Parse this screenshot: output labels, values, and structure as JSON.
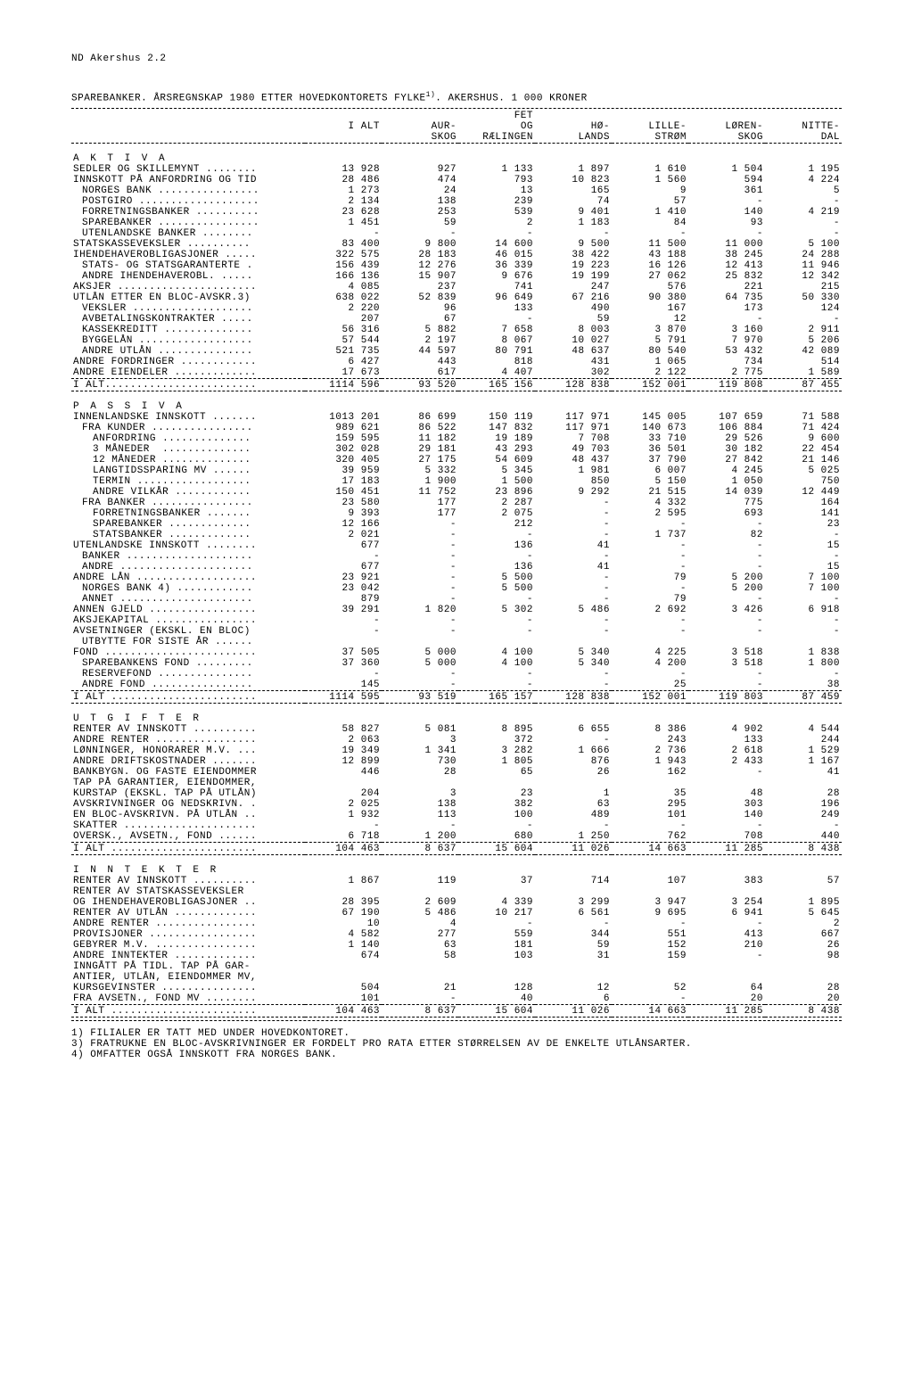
{
  "header": {
    "page_id": "ND  Akershus  2.2",
    "title": "SPAREBANKER.  ÅRSREGNSKAP 1980 ETTER HOVEDKONTORETS FYLKE",
    "title_sup": "1)",
    "title_tail": ".   AKERSHUS.   1 000 KRONER"
  },
  "columns": {
    "c1a": "",
    "c1b": "I ALT",
    "c2a": "AUR-",
    "c2b": "SKOG",
    "c3a": "FET",
    "c3b": "OG",
    "c3c": "RÆLINGEN",
    "c4a": "HØ-",
    "c4b": "LANDS",
    "c5a": "LILLE-",
    "c5b": "STRØM",
    "c6a": "LØREN-",
    "c6b": "SKOG",
    "c7a": "NITTE-",
    "c7b": "DAL"
  },
  "sections": [
    {
      "head": "A K T I V A",
      "rows": [
        {
          "label": "SEDLER OG SKILLEMYNT ........",
          "v": [
            "13 928",
            "927",
            "1 133",
            "1 897",
            "1 610",
            "1 504",
            "1 195"
          ]
        },
        {
          "label": "INNSKOTT PÅ ANFORDRING OG TID",
          "v": [
            "28 486",
            "474",
            "793",
            "10 823",
            "1 560",
            "594",
            "4 224"
          ]
        },
        {
          "label": "NORGES BANK ................",
          "indent": 1,
          "v": [
            "1 273",
            "24",
            "13",
            "165",
            "9",
            "361",
            "5"
          ]
        },
        {
          "label": "POSTGIRO ...................",
          "indent": 1,
          "v": [
            "2 134",
            "138",
            "239",
            "74",
            "57",
            "-",
            "-"
          ]
        },
        {
          "label": "FORRETNINGSBANKER ..........",
          "indent": 1,
          "v": [
            "23 628",
            "253",
            "539",
            "9 401",
            "1 410",
            "140",
            "4 219"
          ]
        },
        {
          "label": "SPAREBANKER ................",
          "indent": 1,
          "v": [
            "1 451",
            "59",
            "2",
            "1 183",
            "84",
            "93",
            "-"
          ]
        },
        {
          "label": "UTENLANDSKE BANKER ........",
          "indent": 1,
          "v": [
            "-",
            "-",
            "-",
            "-",
            "-",
            "-",
            "-"
          ]
        },
        {
          "label": "STATSKASSEVEKSLER ..........",
          "v": [
            "83 400",
            "9 800",
            "14 600",
            "9 500",
            "11 500",
            "11 000",
            "5 100"
          ]
        },
        {
          "label": "IHENDEHAVEROBLIGASJONER .....",
          "v": [
            "322 575",
            "28 183",
            "46 015",
            "38 422",
            "43 188",
            "38 245",
            "24 288"
          ]
        },
        {
          "label": "STATS- OG STATSGARANTERTE .",
          "indent": 1,
          "v": [
            "156 439",
            "12 276",
            "36 339",
            "19 223",
            "16 126",
            "12 413",
            "11 946"
          ]
        },
        {
          "label": "ANDRE IHENDEHAVEROBL. .....",
          "indent": 1,
          "v": [
            "166 136",
            "15 907",
            "9 676",
            "19 199",
            "27 062",
            "25 832",
            "12 342"
          ]
        },
        {
          "label": "AKSJER ......................",
          "v": [
            "4 085",
            "237",
            "741",
            "247",
            "576",
            "221",
            "215"
          ]
        },
        {
          "label": "UTLÅN ETTER EN BLOC-AVSKR.3)",
          "v": [
            "638 022",
            "52 839",
            "96 649",
            "67 216",
            "90 380",
            "64 735",
            "50 330"
          ]
        },
        {
          "label": "VEKSLER ...................",
          "indent": 1,
          "v": [
            "2 220",
            "96",
            "133",
            "490",
            "167",
            "173",
            "124"
          ]
        },
        {
          "label": "AVBETALINGSKONTRAKTER .....",
          "indent": 1,
          "v": [
            "207",
            "67",
            "-",
            "59",
            "12",
            "-",
            "-"
          ]
        },
        {
          "label": "KASSEKREDITT ..............",
          "indent": 1,
          "v": [
            "56 316",
            "5 882",
            "7 658",
            "8 003",
            "3 870",
            "3 160",
            "2 911"
          ]
        },
        {
          "label": "BYGGELÅN ..................",
          "indent": 1,
          "v": [
            "57 544",
            "2 197",
            "8 067",
            "10 027",
            "5 791",
            "7 970",
            "5 206"
          ]
        },
        {
          "label": "ANDRE UTLÅN ...............",
          "indent": 1,
          "v": [
            "521 735",
            "44 597",
            "80 791",
            "48 637",
            "80 540",
            "53 432",
            "42 089"
          ]
        },
        {
          "label": "ANDRE FORDRINGER ............",
          "v": [
            "6 427",
            "443",
            "818",
            "431",
            "1 065",
            "734",
            "514"
          ]
        },
        {
          "label": "ANDRE EIENDELER .............",
          "v": [
            "17 673",
            "617",
            "4 407",
            "302",
            "2 122",
            "2 775",
            "1 589"
          ]
        }
      ],
      "total": {
        "label": "I ALT........................",
        "v": [
          "1114 596",
          "93 520",
          "165 156",
          "128 838",
          "152 001",
          "119 808",
          "87 455"
        ]
      }
    },
    {
      "head": "P A S S I V A",
      "rows": [
        {
          "label": "INNENLANDSKE INNSKOTT .......",
          "v": [
            "1013 201",
            "86 699",
            "150 119",
            "117 971",
            "145 005",
            "107 659",
            "71 588"
          ]
        },
        {
          "label": "FRA KUNDER ................",
          "indent": 1,
          "v": [
            "989 621",
            "86 522",
            "147 832",
            "117 971",
            "140 673",
            "106 884",
            "71 424"
          ]
        },
        {
          "label": "ANFORDRING ..............",
          "indent": 2,
          "v": [
            "159 595",
            "11 182",
            "19 189",
            "7 708",
            "33 710",
            "29 526",
            "9 600"
          ]
        },
        {
          "label": "3 MÅNEDER  ..............",
          "indent": 2,
          "v": [
            "302 028",
            "29 181",
            "43 293",
            "49 703",
            "36 501",
            "30 182",
            "22 454"
          ]
        },
        {
          "label": "12 MÅNEDER ..............",
          "indent": 2,
          "v": [
            "320 405",
            "27 175",
            "54 609",
            "48 437",
            "37 790",
            "27 842",
            "21 146"
          ]
        },
        {
          "label": "LANGTIDSSPARING MV ......",
          "indent": 2,
          "v": [
            "39 959",
            "5 332",
            "5 345",
            "1 981",
            "6 007",
            "4 245",
            "5 025"
          ]
        },
        {
          "label": "TERMIN ..................",
          "indent": 2,
          "v": [
            "17 183",
            "1 900",
            "1 500",
            "850",
            "5 150",
            "1 050",
            "750"
          ]
        },
        {
          "label": "ANDRE VILKÅR ............",
          "indent": 2,
          "v": [
            "150 451",
            "11 752",
            "23 896",
            "9 292",
            "21 515",
            "14 039",
            "12 449"
          ]
        },
        {
          "label": "FRA BANKER ................",
          "indent": 1,
          "v": [
            "23 580",
            "177",
            "2 287",
            "-",
            "4 332",
            "775",
            "164"
          ]
        },
        {
          "label": "FORRETNINGSBANKER .......",
          "indent": 2,
          "v": [
            "9 393",
            "177",
            "2 075",
            "-",
            "2 595",
            "693",
            "141"
          ]
        },
        {
          "label": "SPAREBANKER .............",
          "indent": 2,
          "v": [
            "12 166",
            "-",
            "212",
            "-",
            "-",
            "-",
            "23"
          ]
        },
        {
          "label": "STATSBANKER .............",
          "indent": 2,
          "v": [
            "2 021",
            "-",
            "-",
            "-",
            "1 737",
            "82",
            "-"
          ]
        },
        {
          "label": "UTENLANDSKE INNSKOTT ........",
          "v": [
            "677",
            "-",
            "136",
            "41",
            "-",
            "-",
            "15"
          ]
        },
        {
          "label": "BANKER ....................",
          "indent": 1,
          "v": [
            "-",
            "-",
            "-",
            "-",
            "-",
            "-",
            "-"
          ]
        },
        {
          "label": "ANDRE .....................",
          "indent": 1,
          "v": [
            "677",
            "-",
            "136",
            "41",
            "-",
            "-",
            "15"
          ]
        },
        {
          "label": "ANDRE LÅN ...................",
          "v": [
            "23 921",
            "-",
            "5 500",
            "-",
            "79",
            "5 200",
            "7 100"
          ]
        },
        {
          "label": "NORGES BANK 4) ............",
          "indent": 1,
          "v": [
            "23 042",
            "-",
            "5 500",
            "-",
            "-",
            "5 200",
            "7 100"
          ]
        },
        {
          "label": "ANNET .....................",
          "indent": 1,
          "v": [
            "879",
            "-",
            "-",
            "-",
            "79",
            "-",
            "-"
          ]
        },
        {
          "label": "ANNEN GJELD .................",
          "v": [
            "39 291",
            "1 820",
            "5 302",
            "5 486",
            "2 692",
            "3 426",
            "6 918"
          ]
        },
        {
          "label": "AKSJEKAPITAL ................",
          "v": [
            "-",
            "-",
            "-",
            "-",
            "-",
            "-",
            "-"
          ]
        },
        {
          "label": "AVSETNINGER (EKSKL. EN BLOC)",
          "v": [
            "-",
            "-",
            "-",
            "-",
            "-",
            "-",
            "-"
          ]
        },
        {
          "label": "UTBYTTE FOR SISTE ÅR ......",
          "indent": 1,
          "v": [
            "",
            "",
            "",
            "",
            "",
            "",
            ""
          ]
        },
        {
          "label": "FOND ........................",
          "v": [
            "37 505",
            "5 000",
            "4 100",
            "5 340",
            "4 225",
            "3 518",
            "1 838"
          ]
        },
        {
          "label": "SPAREBANKENS FOND .........",
          "indent": 1,
          "v": [
            "37 360",
            "5 000",
            "4 100",
            "5 340",
            "4 200",
            "3 518",
            "1 800"
          ]
        },
        {
          "label": "RESERVEFOND ...............",
          "indent": 1,
          "v": [
            "-",
            "-",
            "-",
            "-",
            "-",
            "-",
            "-"
          ]
        },
        {
          "label": "ANDRE FOND ................",
          "indent": 1,
          "v": [
            "145",
            "-",
            "-",
            "-",
            "25",
            "-",
            "38"
          ]
        }
      ],
      "total": {
        "label": "I ALT .......................",
        "v": [
          "1114 595",
          "93 519",
          "165 157",
          "128 838",
          "152 001",
          "119 803",
          "87 459"
        ]
      }
    },
    {
      "head": "U T G I F T E R",
      "rows": [
        {
          "label": "RENTER AV INNSKOTT ..........",
          "v": [
            "58 827",
            "5 081",
            "8 895",
            "6 655",
            "8 386",
            "4 902",
            "4 544"
          ]
        },
        {
          "label": "ANDRE RENTER ................",
          "v": [
            "2 063",
            "3",
            "372",
            "-",
            "243",
            "133",
            "244"
          ]
        },
        {
          "label": "LØNNINGER, HONORARER M.V. ...",
          "v": [
            "19 349",
            "1 341",
            "3 282",
            "1 666",
            "2 736",
            "2 618",
            "1 529"
          ]
        },
        {
          "label": "ANDRE DRIFTSKOSTNADER .......",
          "v": [
            "12 899",
            "730",
            "1 805",
            "876",
            "1 943",
            "2 433",
            "1 167"
          ]
        },
        {
          "label": "BANKBYGN. OG FASTE EIENDOMMER",
          "v": [
            "446",
            "28",
            "65",
            "26",
            "162",
            "-",
            "41"
          ]
        },
        {
          "label": "TAP PÅ GARANTIER, EIENDOMMER,",
          "v": [
            "",
            "",
            "",
            "",
            "",
            "",
            ""
          ]
        },
        {
          "label": "KURSTAP (EKSKL. TAP PÅ UTLÅN)",
          "v": [
            "204",
            "3",
            "23",
            "1",
            "35",
            "48",
            "28"
          ]
        },
        {
          "label": "AVSKRIVNINGER OG NEDSKRIVN. .",
          "v": [
            "2 025",
            "138",
            "382",
            "63",
            "295",
            "303",
            "196"
          ]
        },
        {
          "label": "EN BLOC-AVSKRIVN. PÅ UTLÅN ..",
          "v": [
            "1 932",
            "113",
            "100",
            "489",
            "101",
            "140",
            "249"
          ]
        },
        {
          "label": "SKATTER .....................",
          "v": [
            "-",
            "-",
            "-",
            "-",
            "-",
            "-",
            "-"
          ]
        },
        {
          "label": "OVERSK., AVSETN., FOND ......",
          "v": [
            "6 718",
            "1 200",
            "680",
            "1 250",
            "762",
            "708",
            "440"
          ]
        }
      ],
      "total": {
        "label": "I ALT .......................",
        "v": [
          "104 463",
          "8 637",
          "15 604",
          "11 026",
          "14 663",
          "11 285",
          "8 438"
        ]
      }
    },
    {
      "head": "I N N T E K T E R",
      "rows": [
        {
          "label": "RENTER AV INNSKOTT ..........",
          "v": [
            "1 867",
            "119",
            "37",
            "714",
            "107",
            "383",
            "57"
          ]
        },
        {
          "label": "RENTER AV STATSKASSEVEKSLER",
          "v": [
            "",
            "",
            "",
            "",
            "",
            "",
            ""
          ]
        },
        {
          "label": "OG IHENDEHAVEROBLIGASJONER ..",
          "v": [
            "28 395",
            "2 609",
            "4 339",
            "3 299",
            "3 947",
            "3 254",
            "1 895"
          ]
        },
        {
          "label": "RENTER AV UTLÅN .............",
          "v": [
            "67 190",
            "5 486",
            "10 217",
            "6 561",
            "9 695",
            "6 941",
            "5 645"
          ]
        },
        {
          "label": "ANDRE RENTER ................",
          "v": [
            "10",
            "4",
            "-",
            "-",
            "-",
            "-",
            "2"
          ]
        },
        {
          "label": "PROVISJONER .................",
          "v": [
            "4 582",
            "277",
            "559",
            "344",
            "551",
            "413",
            "667"
          ]
        },
        {
          "label": "GEBYRER M.V. ................",
          "v": [
            "1 140",
            "63",
            "181",
            "59",
            "152",
            "210",
            "26"
          ]
        },
        {
          "label": "ANDRE INNTEKTER .............",
          "v": [
            "674",
            "58",
            "103",
            "31",
            "159",
            "-",
            "98"
          ]
        },
        {
          "label": "INNGÅTT PÅ TIDL. TAP PÅ GAR-",
          "v": [
            "",
            "",
            "",
            "",
            "",
            "",
            ""
          ]
        },
        {
          "label": "ANTIER, UTLÅN, EIENDOMMER MV,",
          "v": [
            "",
            "",
            "",
            "",
            "",
            "",
            ""
          ]
        },
        {
          "label": "KURSGEVINSTER ...............",
          "v": [
            "504",
            "21",
            "128",
            "12",
            "52",
            "64",
            "28"
          ]
        },
        {
          "label": "FRA AVSETN., FOND MV ........",
          "v": [
            "101",
            "-",
            "40",
            "6",
            "-",
            "20",
            "20"
          ]
        }
      ],
      "total": {
        "label": "I ALT .......................",
        "v": [
          "104 463",
          "8 637",
          "15 604",
          "11 026",
          "14 663",
          "11 285",
          "8 438"
        ]
      }
    }
  ],
  "footnotes": [
    "1) FILIALER ER TATT MED UNDER HOVEDKONTORET.",
    "3) FRATRUKNE EN BLOC-AVSKRIVNINGER ER FORDELT PRO RATA ETTER STØRRELSEN AV DE ENKELTE UTLÅNSARTER.",
    "4) OMFATTER OGSÅ INNSKOTT FRA NORGES BANK."
  ]
}
